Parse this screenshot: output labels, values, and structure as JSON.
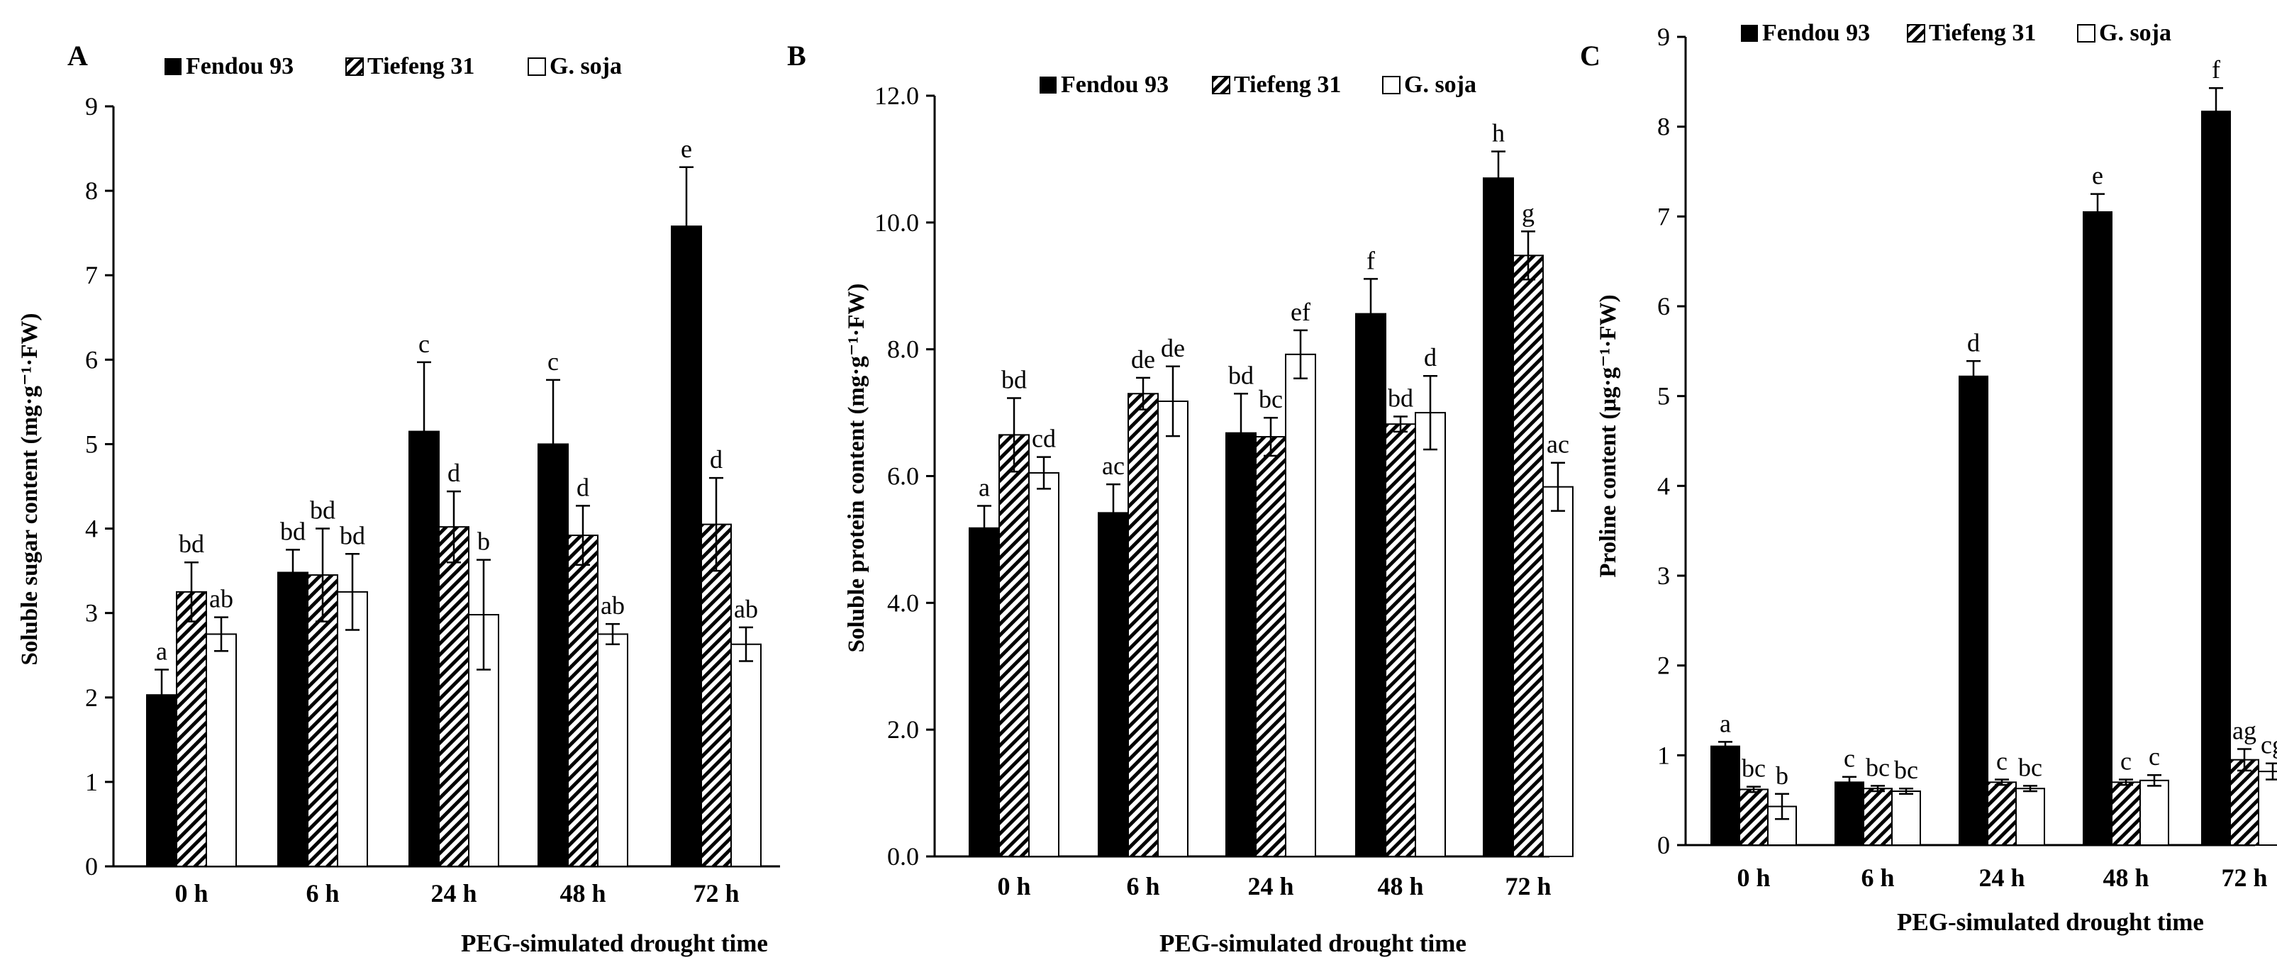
{
  "figure": {
    "legend_labels": [
      "Fendou 93",
      "Tiefeng 31",
      "G. soja"
    ],
    "series_styles": [
      "solid-black",
      "diagonal-hatch",
      "white"
    ],
    "colors": {
      "ink": "#000000",
      "background": "#ffffff"
    }
  },
  "chart_data": [
    {
      "panel": "A",
      "type": "bar",
      "title": "",
      "xlabel": "PEG-simulated drought time",
      "ylabel": "Soluble sugar content (mg·g⁻¹·FW)",
      "categories": [
        "0 h",
        "6 h",
        "24 h",
        "48 h",
        "72 h"
      ],
      "ylim": [
        0,
        9
      ],
      "yticks": [
        "0",
        "1",
        "2",
        "3",
        "4",
        "5",
        "6",
        "7",
        "8",
        "9"
      ],
      "grid": false,
      "legend_position": "top",
      "series": [
        {
          "name": "Fendou 93",
          "values": [
            2.03,
            3.48,
            5.15,
            5.0,
            7.58
          ],
          "errors": [
            0.3,
            0.27,
            0.82,
            0.76,
            0.7
          ],
          "letters": [
            "a",
            "bd",
            "c",
            "c",
            "e"
          ]
        },
        {
          "name": "Tiefeng 31",
          "values": [
            3.25,
            3.45,
            4.02,
            3.92,
            4.05
          ],
          "errors": [
            0.35,
            0.55,
            0.42,
            0.35,
            0.55
          ],
          "letters": [
            "bd",
            "bd",
            "d",
            "d",
            "d"
          ]
        },
        {
          "name": "G. soja",
          "values": [
            2.75,
            3.25,
            2.98,
            2.75,
            2.63
          ],
          "errors": [
            0.2,
            0.45,
            0.65,
            0.12,
            0.2
          ],
          "letters": [
            "ab",
            "bd",
            "b",
            "ab",
            "ab"
          ]
        }
      ]
    },
    {
      "panel": "B",
      "type": "bar",
      "title": "",
      "xlabel": "PEG-simulated drought time",
      "ylabel": "Soluble protein content (mg·g⁻¹·FW)",
      "categories": [
        "0 h",
        "6 h",
        "24 h",
        "48 h",
        "72 h"
      ],
      "ylim": [
        0,
        12
      ],
      "yticks": [
        "0.0",
        "2.0",
        "4.0",
        "6.0",
        "8.0",
        "10.0",
        "12.0"
      ],
      "grid": false,
      "legend_position": "top-right",
      "series": [
        {
          "name": "Fendou 93",
          "values": [
            5.18,
            5.42,
            6.68,
            8.56,
            10.7
          ],
          "errors": [
            0.35,
            0.45,
            0.62,
            0.55,
            0.42
          ],
          "letters": [
            "a",
            "ac",
            "bd",
            "f",
            "h"
          ]
        },
        {
          "name": "Tiefeng 31",
          "values": [
            6.65,
            7.3,
            6.62,
            6.82,
            9.48
          ],
          "errors": [
            0.58,
            0.25,
            0.3,
            0.12,
            0.38
          ],
          "letters": [
            "bd",
            "de",
            "bc",
            "bd",
            "g"
          ]
        },
        {
          "name": "G. soja",
          "values": [
            6.05,
            7.18,
            7.92,
            7.0,
            5.83
          ],
          "errors": [
            0.25,
            0.55,
            0.38,
            0.58,
            0.38
          ],
          "letters": [
            "cd",
            "de",
            "ef",
            "d",
            "ac"
          ]
        }
      ]
    },
    {
      "panel": "C",
      "type": "bar",
      "title": "",
      "xlabel": "PEG-simulated drought time",
      "ylabel": "Proline content (μg·g⁻¹·FW)",
      "categories": [
        "0 h",
        "6 h",
        "24 h",
        "48 h",
        "72 h"
      ],
      "ylim": [
        0,
        9
      ],
      "yticks": [
        "0",
        "1",
        "2",
        "3",
        "4",
        "5",
        "6",
        "7",
        "8",
        "9"
      ],
      "grid": false,
      "legend_position": "top",
      "series": [
        {
          "name": "Fendou 93",
          "values": [
            1.1,
            0.7,
            5.22,
            7.05,
            8.17
          ],
          "errors": [
            0.05,
            0.06,
            0.17,
            0.2,
            0.26
          ],
          "letters": [
            "a",
            "c",
            "d",
            "e",
            "f"
          ]
        },
        {
          "name": "Tiefeng 31",
          "values": [
            0.62,
            0.63,
            0.7,
            0.7,
            0.95
          ],
          "errors": [
            0.03,
            0.03,
            0.03,
            0.03,
            0.12
          ],
          "letters": [
            "bc",
            "bc",
            "c",
            "c",
            "ag"
          ]
        },
        {
          "name": "G. soja",
          "values": [
            0.43,
            0.6,
            0.63,
            0.72,
            0.82
          ],
          "errors": [
            0.14,
            0.03,
            0.03,
            0.06,
            0.09
          ],
          "letters": [
            "b",
            "bc",
            "bc",
            "c",
            "cg"
          ]
        }
      ]
    }
  ]
}
